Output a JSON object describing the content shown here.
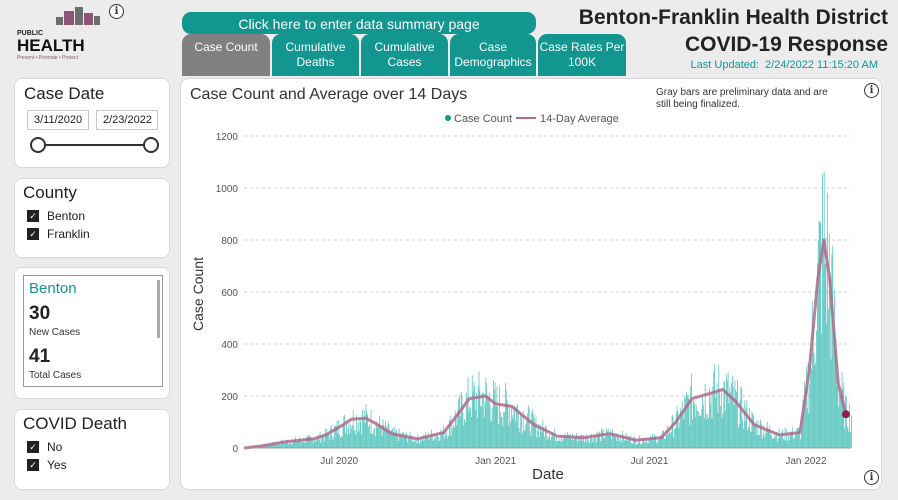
{
  "header": {
    "summary_button": "Click here to enter data summary page",
    "title_line1": "Benton-Franklin Health District",
    "title_line2": "COVID-19 Response",
    "last_updated_label": "Last Updated:",
    "last_updated_value": "2/24/2022 11:15:20 AM"
  },
  "logo": {
    "word_small": "PUBLIC",
    "word_big": "HEALTH",
    "tagline": "Prevent • Promote • Protect"
  },
  "tabs": [
    {
      "label": "Case Count",
      "active": true
    },
    {
      "label": "Cumulative Deaths"
    },
    {
      "label": "Cumulative Cases"
    },
    {
      "label": "Case Demographics"
    },
    {
      "label": "Case Rates Per 100K"
    }
  ],
  "case_date": {
    "title": "Case Date",
    "start": "3/11/2020",
    "end": "2/23/2022"
  },
  "county": {
    "title": "County",
    "options": [
      "Benton",
      "Franklin"
    ]
  },
  "card": {
    "name": "Benton",
    "new_value": "30",
    "new_label": "New Cases",
    "total_value": "41",
    "total_label": "Total Cases"
  },
  "death": {
    "title": "COVID Death",
    "options": [
      "No",
      "Yes"
    ]
  },
  "chart_data": {
    "type": "bar",
    "title": "Case Count and Average over 14 Days",
    "note": "Gray bars are preliminary data and are still being finalized.",
    "xlabel": "Date",
    "ylabel": "Case Count",
    "ylim": [
      0,
      1200
    ],
    "yticks": [
      0,
      200,
      400,
      600,
      800,
      1000,
      1200
    ],
    "xticks": [
      "Jul 2020",
      "Jan 2021",
      "Jul 2021",
      "Jan 2022"
    ],
    "grid": true,
    "legend_position": "top-center",
    "series": [
      {
        "name": "Case Count",
        "color": "#2ab0a8"
      },
      {
        "name": "14-Day Average",
        "color": "#b06a8c"
      }
    ],
    "average_points": [
      {
        "x": "2020-03-11",
        "y": 0
      },
      {
        "x": "2020-04-01",
        "y": 8
      },
      {
        "x": "2020-05-01",
        "y": 25
      },
      {
        "x": "2020-06-01",
        "y": 35
      },
      {
        "x": "2020-06-15",
        "y": 50
      },
      {
        "x": "2020-07-01",
        "y": 80
      },
      {
        "x": "2020-07-15",
        "y": 110
      },
      {
        "x": "2020-08-01",
        "y": 115
      },
      {
        "x": "2020-08-15",
        "y": 90
      },
      {
        "x": "2020-09-01",
        "y": 55
      },
      {
        "x": "2020-10-01",
        "y": 35
      },
      {
        "x": "2020-11-01",
        "y": 60
      },
      {
        "x": "2020-11-20",
        "y": 140
      },
      {
        "x": "2020-12-01",
        "y": 190
      },
      {
        "x": "2020-12-20",
        "y": 200
      },
      {
        "x": "2021-01-01",
        "y": 170
      },
      {
        "x": "2021-01-20",
        "y": 160
      },
      {
        "x": "2021-02-15",
        "y": 90
      },
      {
        "x": "2021-03-15",
        "y": 45
      },
      {
        "x": "2021-04-15",
        "y": 40
      },
      {
        "x": "2021-05-15",
        "y": 55
      },
      {
        "x": "2021-06-15",
        "y": 30
      },
      {
        "x": "2021-07-15",
        "y": 40
      },
      {
        "x": "2021-08-01",
        "y": 100
      },
      {
        "x": "2021-08-20",
        "y": 190
      },
      {
        "x": "2021-09-10",
        "y": 210
      },
      {
        "x": "2021-09-25",
        "y": 225
      },
      {
        "x": "2021-10-10",
        "y": 180
      },
      {
        "x": "2021-11-01",
        "y": 90
      },
      {
        "x": "2021-12-01",
        "y": 50
      },
      {
        "x": "2021-12-25",
        "y": 60
      },
      {
        "x": "2022-01-05",
        "y": 300
      },
      {
        "x": "2022-01-15",
        "y": 650
      },
      {
        "x": "2022-01-22",
        "y": 800
      },
      {
        "x": "2022-01-29",
        "y": 650
      },
      {
        "x": "2022-02-08",
        "y": 250
      },
      {
        "x": "2022-02-17",
        "y": 130
      }
    ]
  }
}
